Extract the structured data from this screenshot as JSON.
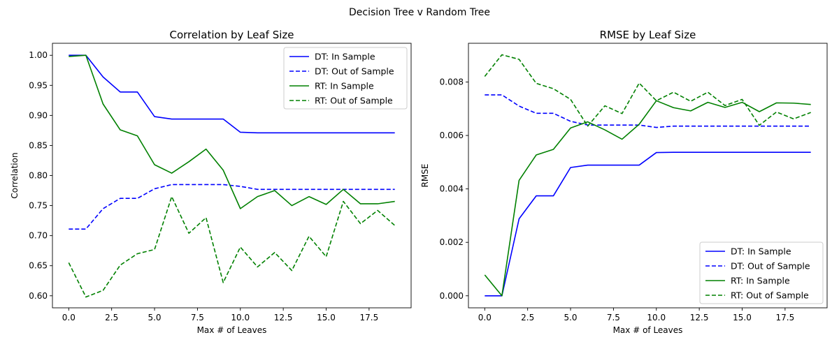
{
  "figure": {
    "suptitle": "Decision Tree v Random Tree"
  },
  "chart_data": [
    {
      "type": "line",
      "title": "Correlation by Leaf Size",
      "xlabel": "Max # of Leaves",
      "ylabel": "Correlation",
      "xlim": [
        -0.95,
        19.95
      ],
      "ylim": [
        0.58,
        1.02
      ],
      "xticks": [
        0,
        2.5,
        5,
        7.5,
        10,
        12.5,
        15,
        17.5
      ],
      "xtick_labels": [
        "0.0",
        "2.5",
        "5.0",
        "7.5",
        "10.0",
        "12.5",
        "15.0",
        "17.5"
      ],
      "yticks": [
        0.6,
        0.65,
        0.7,
        0.75,
        0.8,
        0.85,
        0.9,
        0.95,
        1.0
      ],
      "ytick_labels": [
        "0.60",
        "0.65",
        "0.70",
        "0.75",
        "0.80",
        "0.85",
        "0.90",
        "0.95",
        "1.00"
      ],
      "grid": false,
      "legend_position": "upper right",
      "x": [
        0,
        1,
        2,
        3,
        4,
        5,
        6,
        7,
        8,
        9,
        10,
        11,
        12,
        13,
        14,
        15,
        16,
        17,
        18,
        19
      ],
      "series": [
        {
          "name": "DT: In Sample",
          "color": "#0000ff",
          "dash": "solid",
          "values": [
            1.0,
            1.0,
            0.964,
            0.939,
            0.939,
            0.898,
            0.894,
            0.894,
            0.894,
            0.894,
            0.872,
            0.871,
            0.871,
            0.871,
            0.871,
            0.871,
            0.871,
            0.871,
            0.871,
            0.871
          ]
        },
        {
          "name": "DT: Out of Sample",
          "color": "#0000ff",
          "dash": "dashed",
          "values": [
            0.711,
            0.711,
            0.745,
            0.762,
            0.762,
            0.778,
            0.785,
            0.785,
            0.785,
            0.785,
            0.782,
            0.777,
            0.777,
            0.777,
            0.777,
            0.777,
            0.777,
            0.777,
            0.777,
            0.777
          ]
        },
        {
          "name": "RT: In Sample",
          "color": "#008000",
          "dash": "solid",
          "values": [
            0.998,
            1.0,
            0.919,
            0.876,
            0.866,
            0.818,
            0.804,
            0.823,
            0.844,
            0.809,
            0.745,
            0.765,
            0.775,
            0.75,
            0.765,
            0.752,
            0.777,
            0.753,
            0.753,
            0.757
          ]
        },
        {
          "name": "RT: Out of Sample",
          "color": "#008000",
          "dash": "dashed",
          "values": [
            0.655,
            0.598,
            0.609,
            0.651,
            0.67,
            0.677,
            0.765,
            0.704,
            0.73,
            0.622,
            0.681,
            0.648,
            0.672,
            0.642,
            0.699,
            0.665,
            0.757,
            0.72,
            0.742,
            0.717
          ]
        }
      ]
    },
    {
      "type": "line",
      "title": "RMSE by Leaf Size",
      "xlabel": "Max # of Leaves",
      "ylabel": "RMSE",
      "xlim": [
        -0.95,
        19.95
      ],
      "ylim": [
        -0.00045,
        0.00945
      ],
      "xticks": [
        0,
        2.5,
        5,
        7.5,
        10,
        12.5,
        15,
        17.5
      ],
      "xtick_labels": [
        "0.0",
        "2.5",
        "5.0",
        "7.5",
        "10.0",
        "12.5",
        "15.0",
        "17.5"
      ],
      "yticks": [
        0.0,
        0.002,
        0.004,
        0.006,
        0.008
      ],
      "ytick_labels": [
        "0.000",
        "0.002",
        "0.004",
        "0.006",
        "0.008"
      ],
      "grid": false,
      "legend_position": "lower right",
      "x": [
        0,
        1,
        2,
        3,
        4,
        5,
        6,
        7,
        8,
        9,
        10,
        11,
        12,
        13,
        14,
        15,
        16,
        17,
        18,
        19
      ],
      "series": [
        {
          "name": "DT: In Sample",
          "color": "#0000ff",
          "dash": "solid",
          "values": [
            0.0,
            0.0,
            0.00288,
            0.00374,
            0.00374,
            0.0048,
            0.00489,
            0.00489,
            0.00489,
            0.00489,
            0.00536,
            0.00537,
            0.00537,
            0.00537,
            0.00537,
            0.00537,
            0.00537,
            0.00537,
            0.00537,
            0.00537
          ]
        },
        {
          "name": "DT: Out of Sample",
          "color": "#0000ff",
          "dash": "dashed",
          "values": [
            0.00752,
            0.00752,
            0.0071,
            0.00683,
            0.00683,
            0.00653,
            0.00639,
            0.00639,
            0.00639,
            0.00639,
            0.0063,
            0.00635,
            0.00635,
            0.00635,
            0.00635,
            0.00635,
            0.00635,
            0.00635,
            0.00635,
            0.00635
          ]
        },
        {
          "name": "RT: In Sample",
          "color": "#008000",
          "dash": "solid",
          "values": [
            0.00078,
            0.0,
            0.00432,
            0.00527,
            0.00548,
            0.00628,
            0.00651,
            0.00621,
            0.00586,
            0.00642,
            0.0073,
            0.00704,
            0.00692,
            0.00724,
            0.00705,
            0.00724,
            0.00689,
            0.00722,
            0.00721,
            0.00716
          ]
        },
        {
          "name": "RT: Out of Sample",
          "color": "#008000",
          "dash": "dashed",
          "values": [
            0.00821,
            0.00902,
            0.00885,
            0.00795,
            0.00775,
            0.00735,
            0.00635,
            0.00711,
            0.00682,
            0.00796,
            0.0073,
            0.00762,
            0.00728,
            0.00762,
            0.00712,
            0.00735,
            0.00638,
            0.00688,
            0.00662,
            0.00686
          ]
        }
      ]
    }
  ]
}
